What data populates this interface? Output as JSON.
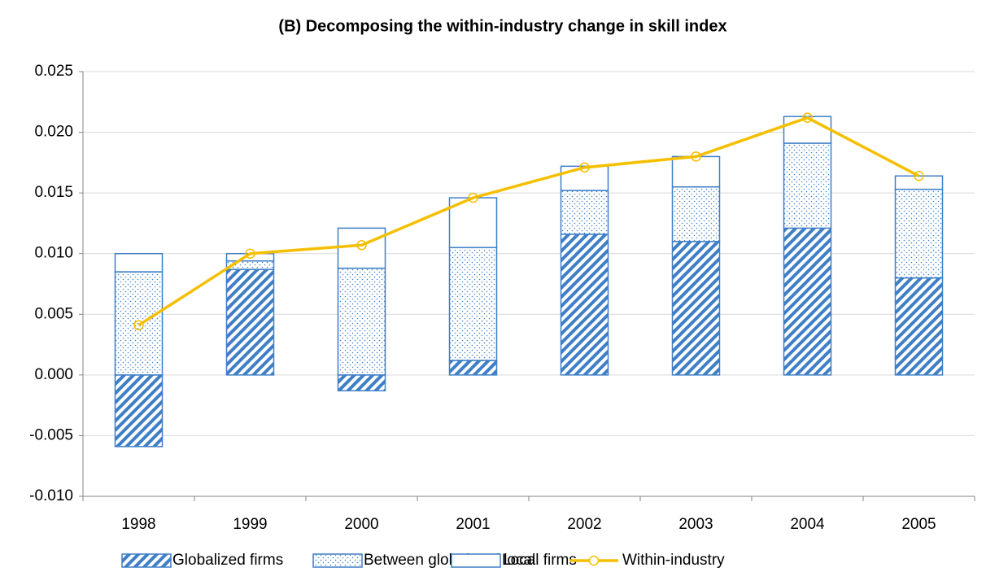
{
  "chart_data": {
    "type": "bar",
    "title": "(B) Decomposing the within-industry change in skill index",
    "categories": [
      "1998",
      "1999",
      "2000",
      "2001",
      "2002",
      "2003",
      "2004",
      "2005"
    ],
    "series": [
      {
        "name": "Globalized firms",
        "type": "bar",
        "pattern": "hatch",
        "color": "#3f7fc6",
        "values": [
          -0.0059,
          0.0087,
          -0.0013,
          0.0012,
          0.0116,
          0.011,
          0.0121,
          0.008
        ]
      },
      {
        "name": "Between global and local",
        "type": "bar",
        "pattern": "dots",
        "color": "#3f7fc6",
        "values": [
          0.0085,
          0.0007,
          0.0088,
          0.0093,
          0.0036,
          0.0045,
          0.007,
          0.0073
        ]
      },
      {
        "name": "Local firms",
        "type": "bar",
        "pattern": "none",
        "color": "#3f7fc6",
        "values": [
          0.0015,
          0.0006,
          0.0033,
          0.0041,
          0.002,
          0.0025,
          0.0022,
          0.0011
        ]
      },
      {
        "name": "Within-industry",
        "type": "line",
        "color": "#f5bf00",
        "values": [
          0.0041,
          0.01,
          0.0107,
          0.0146,
          0.0171,
          0.018,
          0.0212,
          0.0164
        ]
      }
    ],
    "ylim": [
      -0.01,
      0.025
    ],
    "yticks": [
      {
        "value": -0.01,
        "label": "-0.010"
      },
      -0.005,
      {
        "value": 0,
        "label": "0.000"
      },
      0.005,
      {
        "value": 0.01,
        "label": "0.010"
      },
      0.015,
      {
        "value": 0.02,
        "label": "0.020"
      },
      0.025
    ],
    "grid": true,
    "legend": "bottom"
  }
}
